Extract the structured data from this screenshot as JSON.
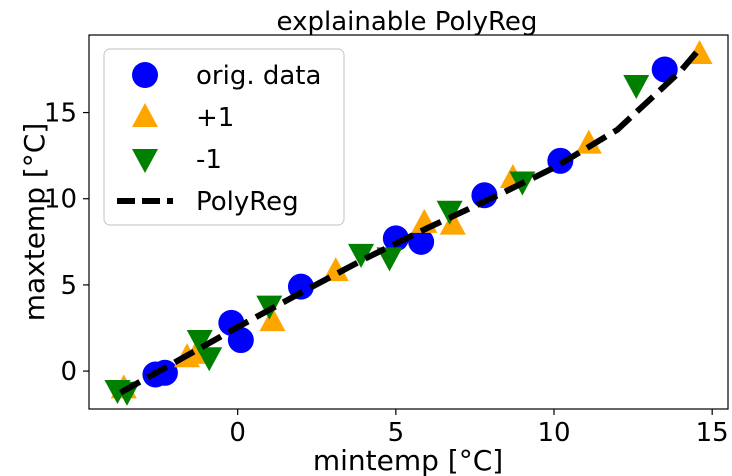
{
  "chart_data": {
    "type": "scatter",
    "title": "explainable PolyReg",
    "xlabel": "mintemp [°C]",
    "ylabel": "maxtemp [°C]",
    "xlim": [
      -4.7,
      15.5
    ],
    "ylim": [
      -2.2,
      19.5
    ],
    "xticks": [
      0,
      5,
      10,
      15
    ],
    "yticks": [
      0,
      5,
      10,
      15
    ],
    "grid": false,
    "legend_position": "top-left",
    "series": [
      {
        "name": "orig. data",
        "marker": "circle",
        "color": "#0000ff",
        "points": [
          [
            -2.6,
            -0.2
          ],
          [
            -2.3,
            -0.1
          ],
          [
            -0.2,
            2.8
          ],
          [
            0.1,
            1.8
          ],
          [
            2.0,
            4.9
          ],
          [
            5.0,
            7.7
          ],
          [
            5.8,
            7.5
          ],
          [
            7.8,
            10.2
          ],
          [
            10.2,
            12.2
          ],
          [
            13.5,
            17.5
          ]
        ]
      },
      {
        "name": "+1",
        "marker": "triangle-up",
        "color": "#ffa500",
        "points": [
          [
            -3.6,
            -1.0
          ],
          [
            -1.6,
            0.8
          ],
          [
            -1.3,
            1.0
          ],
          [
            1.1,
            2.9
          ],
          [
            3.1,
            5.8
          ],
          [
            5.9,
            8.6
          ],
          [
            6.8,
            8.5
          ],
          [
            8.7,
            11.2
          ],
          [
            11.1,
            13.2
          ],
          [
            14.6,
            18.4
          ]
        ]
      },
      {
        "name": "-1",
        "marker": "triangle-down",
        "color": "#008000",
        "points": [
          [
            -3.8,
            -1.1
          ],
          [
            -3.5,
            -1.2
          ],
          [
            -1.2,
            1.8
          ],
          [
            -0.9,
            0.8
          ],
          [
            1.0,
            3.8
          ],
          [
            3.9,
            6.8
          ],
          [
            4.8,
            6.6
          ],
          [
            6.7,
            9.3
          ],
          [
            9.0,
            11.0
          ],
          [
            12.6,
            16.6
          ]
        ]
      },
      {
        "name": "PolyReg",
        "type": "line",
        "style": "dashed",
        "color": "#000000",
        "x": [
          -3.7,
          -2,
          0,
          2,
          4,
          6,
          8,
          10,
          12,
          14,
          14.6
        ],
        "y": [
          -1.25,
          0.5,
          2.55,
          4.55,
          6.5,
          8.3,
          10.0,
          11.8,
          14.0,
          17.4,
          18.7
        ]
      }
    ]
  }
}
